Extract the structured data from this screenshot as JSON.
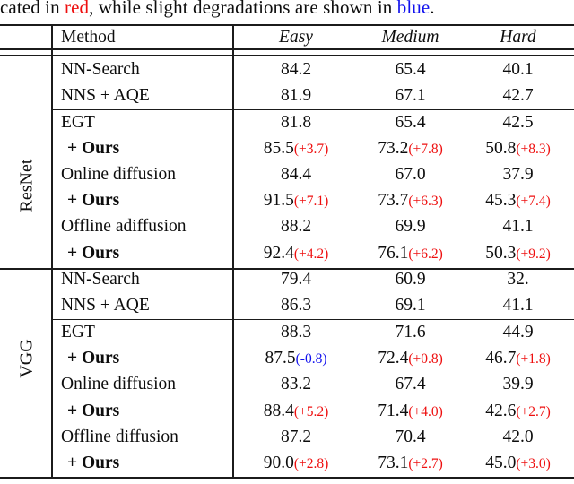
{
  "caption": {
    "prefix": "cated in ",
    "red_word": "red",
    "middle": ", while slight degradations are shown in ",
    "blue_word": "blue",
    "suffix": "."
  },
  "colors": {
    "red": "#ee0e0e",
    "blue": "#1212ee"
  },
  "table": {
    "columns": {
      "method": "Method",
      "easy": "Easy",
      "medium": "Medium",
      "hard": "Hard"
    },
    "groups": [
      {
        "label": "ResNet",
        "rows": [
          {
            "method": "NN-Search",
            "bold": false,
            "rule_above": false,
            "cells": [
              {
                "v": "84.2"
              },
              {
                "v": "65.4"
              },
              {
                "v": "40.1"
              }
            ]
          },
          {
            "method": "NNS + AQE",
            "bold": false,
            "rule_above": false,
            "cells": [
              {
                "v": "81.9"
              },
              {
                "v": "67.1"
              },
              {
                "v": "42.7"
              }
            ]
          },
          {
            "method": "EGT",
            "bold": false,
            "rule_above": true,
            "cells": [
              {
                "v": "81.8"
              },
              {
                "v": "65.4"
              },
              {
                "v": "42.5"
              }
            ]
          },
          {
            "method": "+ Ours",
            "bold": true,
            "rule_above": false,
            "cells": [
              {
                "v": "85.5",
                "d": "(+3.7)",
                "dc": "red"
              },
              {
                "v": "73.2",
                "d": "(+7.8)",
                "dc": "red"
              },
              {
                "v": "50.8",
                "d": "(+8.3)",
                "dc": "red"
              }
            ]
          },
          {
            "method": "Online diffusion",
            "bold": false,
            "rule_above": false,
            "cells": [
              {
                "v": "84.4"
              },
              {
                "v": "67.0"
              },
              {
                "v": "37.9"
              }
            ]
          },
          {
            "method": "+ Ours",
            "bold": true,
            "rule_above": false,
            "cells": [
              {
                "v": "91.5",
                "d": "(+7.1)",
                "dc": "red"
              },
              {
                "v": "73.7",
                "d": "(+6.3)",
                "dc": "red"
              },
              {
                "v": "45.3",
                "d": "(+7.4)",
                "dc": "red"
              }
            ]
          },
          {
            "method": "Offline adiffusion",
            "bold": false,
            "rule_above": false,
            "cells": [
              {
                "v": "88.2"
              },
              {
                "v": "69.9"
              },
              {
                "v": "41.1"
              }
            ]
          },
          {
            "method": "+ Ours",
            "bold": true,
            "rule_above": false,
            "cells": [
              {
                "v": "92.4",
                "d": "(+4.2)",
                "dc": "red"
              },
              {
                "v": "76.1",
                "d": "(+6.2)",
                "dc": "red"
              },
              {
                "v": "50.3",
                "d": "(+9.2)",
                "dc": "red"
              }
            ]
          }
        ]
      },
      {
        "label": "VGG",
        "rows": [
          {
            "method": "NN-Search",
            "bold": false,
            "rule_above": false,
            "cells": [
              {
                "v": "79.4"
              },
              {
                "v": "60.9"
              },
              {
                "v": "32."
              }
            ]
          },
          {
            "method": "NNS + AQE",
            "bold": false,
            "rule_above": false,
            "cells": [
              {
                "v": "86.3"
              },
              {
                "v": "69.1"
              },
              {
                "v": "41.1"
              }
            ]
          },
          {
            "method": "EGT",
            "bold": false,
            "rule_above": true,
            "cells": [
              {
                "v": "88.3"
              },
              {
                "v": "71.6"
              },
              {
                "v": "44.9"
              }
            ]
          },
          {
            "method": "+ Ours",
            "bold": true,
            "rule_above": false,
            "cells": [
              {
                "v": "87.5",
                "d": "(-0.8)",
                "dc": "blue"
              },
              {
                "v": "72.4",
                "d": "(+0.8)",
                "dc": "red"
              },
              {
                "v": "46.7",
                "d": "(+1.8)",
                "dc": "red"
              }
            ]
          },
          {
            "method": "Online diffusion",
            "bold": false,
            "rule_above": false,
            "cells": [
              {
                "v": "83.2"
              },
              {
                "v": "67.4"
              },
              {
                "v": "39.9"
              }
            ]
          },
          {
            "method": "+ Ours",
            "bold": true,
            "rule_above": false,
            "cells": [
              {
                "v": "88.4",
                "d": "(+5.2)",
                "dc": "red"
              },
              {
                "v": "71.4",
                "d": "(+4.0)",
                "dc": "red"
              },
              {
                "v": "42.6",
                "d": "(+2.7)",
                "dc": "red"
              }
            ]
          },
          {
            "method": "Offline diffusion",
            "bold": false,
            "rule_above": false,
            "cells": [
              {
                "v": "87.2"
              },
              {
                "v": "70.4"
              },
              {
                "v": "42.0"
              }
            ]
          },
          {
            "method": "+ Ours",
            "bold": true,
            "rule_above": false,
            "cells": [
              {
                "v": "90.0",
                "d": "(+2.8)",
                "dc": "red"
              },
              {
                "v": "73.1",
                "d": "(+2.7)",
                "dc": "red"
              },
              {
                "v": "45.0",
                "d": "(+3.0)",
                "dc": "red"
              }
            ]
          }
        ]
      }
    ]
  }
}
